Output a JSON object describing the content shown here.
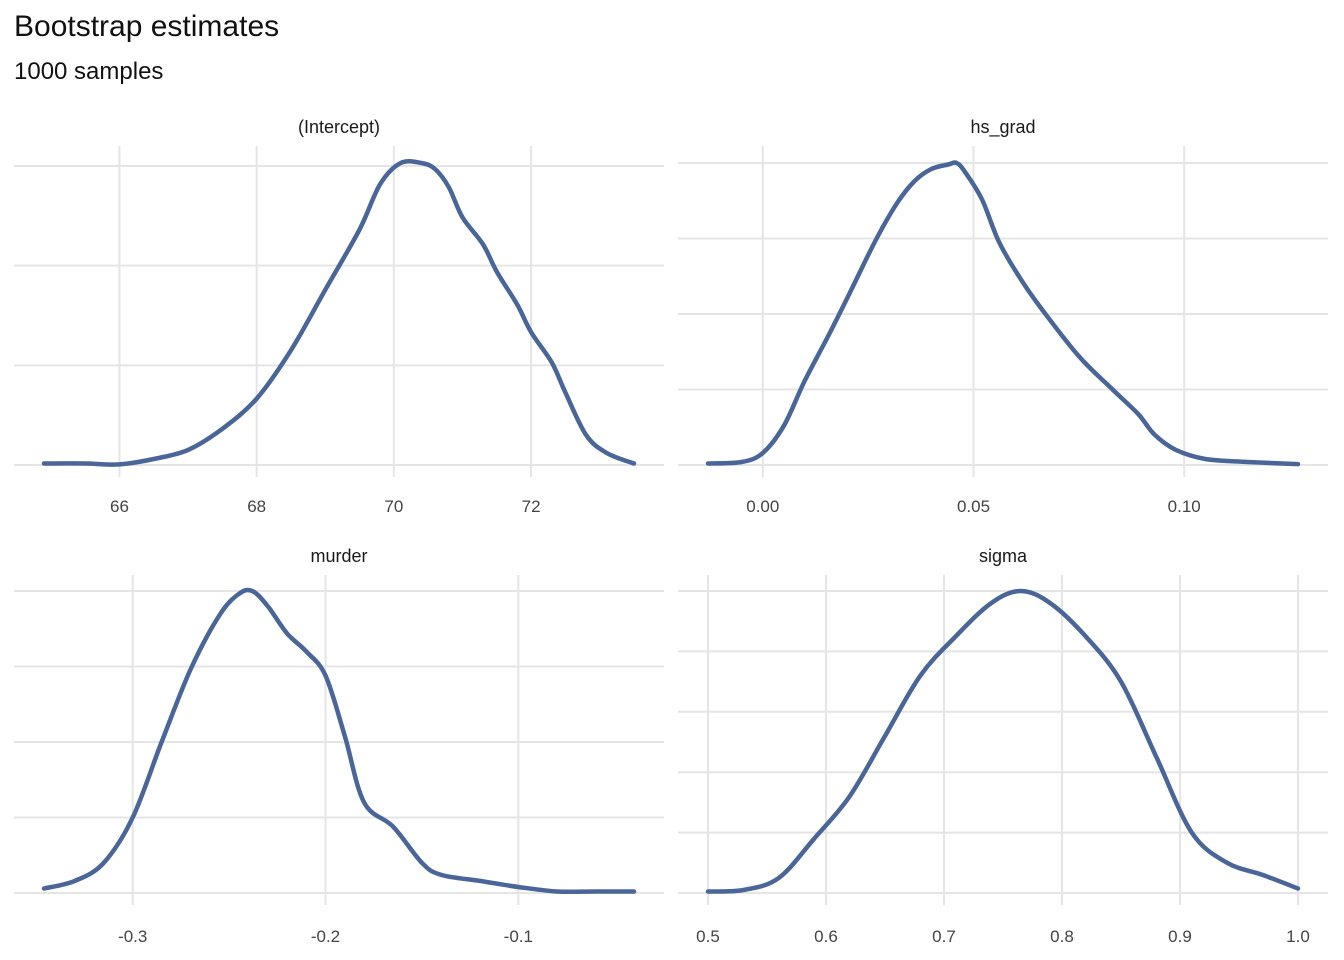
{
  "title": "Bootstrap estimates",
  "subtitle": "1000 samples",
  "chart_data": [
    {
      "type": "line",
      "facet": "(Intercept)",
      "xlim": [
        64.9,
        73.5
      ],
      "ylim": [
        0,
        1
      ],
      "xticks": [
        66,
        68,
        70,
        72
      ],
      "xtick_labels": [
        "66",
        "68",
        "70",
        "72"
      ],
      "x_grid": [
        66,
        68,
        70,
        72
      ],
      "y_grid": [
        0,
        0.33,
        0.66,
        0.99
      ],
      "x": [
        64.9,
        65.5,
        66.0,
        66.5,
        67.0,
        67.5,
        68.0,
        68.5,
        69.0,
        69.5,
        69.8,
        70.1,
        70.4,
        70.6,
        70.8,
        71.0,
        71.3,
        71.5,
        71.8,
        72.0,
        72.3,
        72.5,
        72.8,
        73.1,
        73.5
      ],
      "y": [
        0.005,
        0.005,
        0.002,
        0.02,
        0.05,
        0.12,
        0.22,
        0.38,
        0.58,
        0.78,
        0.93,
        1.0,
        1.0,
        0.98,
        0.92,
        0.82,
        0.73,
        0.64,
        0.53,
        0.44,
        0.34,
        0.24,
        0.1,
        0.04,
        0.005
      ],
      "series": [
        {
          "name": "",
          "color": "#4a6698"
        }
      ]
    },
    {
      "type": "line",
      "facet": "hs_grad",
      "xlim": [
        -0.013,
        0.127
      ],
      "ylim": [
        0,
        1
      ],
      "xticks": [
        0.0,
        0.05,
        0.1
      ],
      "xtick_labels": [
        "0.00",
        "0.05",
        "0.10"
      ],
      "x_grid": [
        0.0,
        0.05,
        0.1
      ],
      "y_grid": [
        0,
        0.25,
        0.5,
        0.75,
        1.0
      ],
      "x": [
        -0.013,
        -0.005,
        0.0,
        0.005,
        0.01,
        0.016,
        0.021,
        0.027,
        0.032,
        0.036,
        0.04,
        0.044,
        0.046,
        0.048,
        0.052,
        0.056,
        0.061,
        0.066,
        0.075,
        0.083,
        0.089,
        0.093,
        0.098,
        0.105,
        0.115,
        0.127
      ],
      "y": [
        0.005,
        0.01,
        0.04,
        0.13,
        0.28,
        0.44,
        0.58,
        0.75,
        0.87,
        0.94,
        0.98,
        0.995,
        1.0,
        0.97,
        0.88,
        0.74,
        0.62,
        0.52,
        0.36,
        0.25,
        0.17,
        0.1,
        0.05,
        0.02,
        0.01,
        0.003
      ],
      "series": [
        {
          "name": "",
          "color": "#4a6698"
        }
      ]
    },
    {
      "type": "line",
      "facet": "murder",
      "xlim": [
        -0.346,
        -0.04
      ],
      "ylim": [
        0,
        1
      ],
      "xticks": [
        -0.3,
        -0.2,
        -0.1
      ],
      "xtick_labels": [
        "-0.3",
        "-0.2",
        "-0.1"
      ],
      "x_grid": [
        -0.3,
        -0.2,
        -0.1
      ],
      "y_grid": [
        0,
        0.25,
        0.5,
        0.75,
        1.0
      ],
      "x": [
        -0.346,
        -0.33,
        -0.315,
        -0.3,
        -0.285,
        -0.27,
        -0.255,
        -0.245,
        -0.238,
        -0.23,
        -0.22,
        -0.21,
        -0.2,
        -0.19,
        -0.18,
        -0.165,
        -0.15,
        -0.14,
        -0.12,
        -0.1,
        -0.08,
        -0.06,
        -0.04
      ],
      "y": [
        0.015,
        0.04,
        0.1,
        0.25,
        0.5,
        0.74,
        0.92,
        0.99,
        1.0,
        0.95,
        0.86,
        0.8,
        0.72,
        0.52,
        0.3,
        0.22,
        0.1,
        0.06,
        0.04,
        0.02,
        0.005,
        0.005,
        0.005
      ],
      "series": [
        {
          "name": "",
          "color": "#4a6698"
        }
      ]
    },
    {
      "type": "line",
      "facet": "sigma",
      "xlim": [
        0.5,
        1.0
      ],
      "ylim": [
        0,
        1
      ],
      "xticks": [
        0.5,
        0.6,
        0.7,
        0.8,
        0.9,
        1.0
      ],
      "xtick_labels": [
        "0.5",
        "0.6",
        "0.7",
        "0.8",
        "0.9",
        "1.0"
      ],
      "x_grid": [
        0.5,
        0.6,
        0.7,
        0.8,
        0.9,
        1.0
      ],
      "y_grid": [
        0,
        0.2,
        0.4,
        0.6,
        0.8,
        1.0
      ],
      "x": [
        0.5,
        0.53,
        0.56,
        0.59,
        0.62,
        0.65,
        0.68,
        0.71,
        0.74,
        0.765,
        0.79,
        0.82,
        0.85,
        0.88,
        0.91,
        0.94,
        0.97,
        1.0
      ],
      "y": [
        0.005,
        0.01,
        0.05,
        0.18,
        0.32,
        0.52,
        0.72,
        0.85,
        0.96,
        1.0,
        0.96,
        0.85,
        0.7,
        0.45,
        0.2,
        0.1,
        0.06,
        0.015
      ],
      "series": [
        {
          "name": "",
          "color": "#4a6698"
        }
      ]
    }
  ]
}
